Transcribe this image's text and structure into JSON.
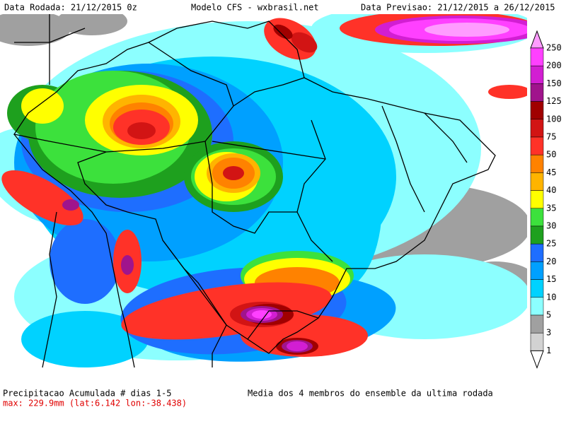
{
  "header": {
    "left": "Data Rodada: 21/12/2015 0z",
    "center": "Modelo CFS - wxbrasil.net",
    "right": "Data Previsao: 21/12/2015 a 26/12/2015"
  },
  "legend": {
    "levels": [
      250,
      200,
      150,
      125,
      100,
      75,
      50,
      45,
      40,
      35,
      30,
      25,
      20,
      15,
      10,
      5,
      3,
      1
    ],
    "colors": [
      "#ff9cff",
      "#ff40ff",
      "#d21ed2",
      "#a0148c",
      "#a00000",
      "#d21414",
      "#ff3228",
      "#ff8200",
      "#ffb400",
      "#ffff00",
      "#3ce13c",
      "#1ea01e",
      "#1e6eff",
      "#00a0ff",
      "#00d2ff",
      "#8cffff",
      "#a0a0a0",
      "#d2d2d2",
      "#ffffff"
    ]
  },
  "footer": {
    "title": "Precipitacao Acumulada # dias 1-5",
    "max": "max: 229.9mm (lat:6.142 lon:-38.438)",
    "note": "Media dos 4 membros do ensemble da ultima rodada"
  }
}
